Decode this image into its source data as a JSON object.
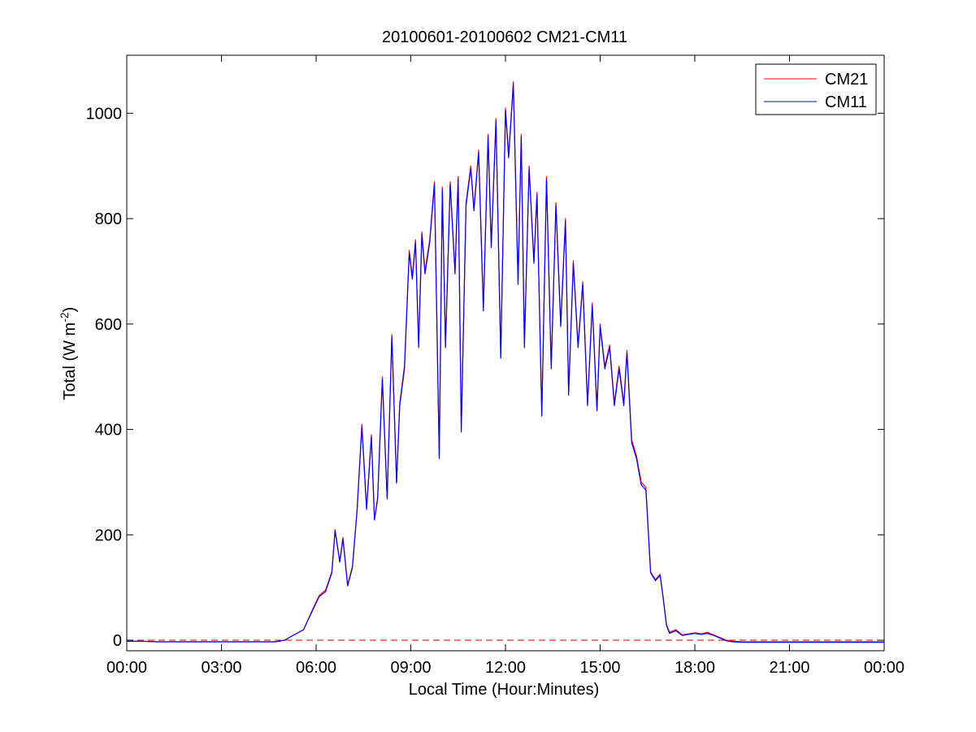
{
  "chart_data": {
    "type": "line",
    "title": "20100601-20100602 CM21-CM11",
    "xlabel": "Local Time (Hour:Minutes)",
    "ylabel_main": "Total (W m",
    "ylabel_sup": "-2",
    "ylabel_close": ")",
    "xlim_hours": [
      0,
      24
    ],
    "ylim": [
      -20,
      1110
    ],
    "x_ticks": [
      {
        "hour": 0,
        "label": "00:00"
      },
      {
        "hour": 3,
        "label": "03:00"
      },
      {
        "hour": 6,
        "label": "06:00"
      },
      {
        "hour": 9,
        "label": "09:00"
      },
      {
        "hour": 12,
        "label": "12:00"
      },
      {
        "hour": 15,
        "label": "15:00"
      },
      {
        "hour": 18,
        "label": "18:00"
      },
      {
        "hour": 21,
        "label": "21:00"
      },
      {
        "hour": 24,
        "label": "00:00"
      }
    ],
    "y_ticks": [
      {
        "value": 0,
        "label": "0"
      },
      {
        "value": 200,
        "label": "200"
      },
      {
        "value": 400,
        "label": "400"
      },
      {
        "value": 600,
        "label": "600"
      },
      {
        "value": 800,
        "label": "800"
      },
      {
        "value": 1000,
        "label": "1000"
      }
    ],
    "grid": false,
    "legend_position": "top-right",
    "zero_reference_line": {
      "value": 0,
      "color": "#cc0000",
      "style": "dashed"
    },
    "series": [
      {
        "name": "CM21",
        "color": "#ff0000",
        "x_hours": [
          0,
          0.5,
          1,
          2,
          3,
          4,
          4.7,
          5.0,
          5.3,
          5.6,
          5.9,
          6.1,
          6.3,
          6.5,
          6.6,
          6.75,
          6.85,
          7.0,
          7.15,
          7.3,
          7.45,
          7.6,
          7.75,
          7.85,
          7.95,
          8.1,
          8.25,
          8.4,
          8.55,
          8.65,
          8.8,
          8.95,
          9.05,
          9.15,
          9.25,
          9.35,
          9.45,
          9.6,
          9.75,
          9.9,
          10.0,
          10.1,
          10.25,
          10.4,
          10.5,
          10.6,
          10.75,
          10.9,
          11.0,
          11.15,
          11.3,
          11.45,
          11.55,
          11.7,
          11.85,
          12.0,
          12.1,
          12.25,
          12.4,
          12.5,
          12.6,
          12.75,
          12.9,
          13.0,
          13.15,
          13.3,
          13.45,
          13.6,
          13.75,
          13.9,
          14.0,
          14.15,
          14.3,
          14.45,
          14.6,
          14.75,
          14.9,
          15.0,
          15.15,
          15.3,
          15.45,
          15.6,
          15.75,
          15.85,
          16.0,
          16.15,
          16.3,
          16.45,
          16.6,
          16.75,
          16.9,
          17.0,
          17.1,
          17.2,
          17.4,
          17.6,
          17.8,
          18.0,
          18.2,
          18.4,
          18.6,
          18.8,
          19.0,
          19.2,
          19.5,
          20,
          21,
          22,
          23,
          24
        ],
        "values": [
          -2,
          -2,
          -3,
          -3,
          -3,
          -3,
          -3,
          0,
          10,
          20,
          60,
          85,
          95,
          130,
          210,
          150,
          195,
          105,
          140,
          250,
          410,
          250,
          390,
          230,
          270,
          500,
          270,
          580,
          300,
          450,
          520,
          740,
          690,
          760,
          560,
          775,
          700,
          760,
          870,
          350,
          860,
          560,
          870,
          700,
          880,
          400,
          830,
          900,
          820,
          930,
          630,
          960,
          750,
          990,
          540,
          1010,
          920,
          1060,
          680,
          960,
          560,
          900,
          720,
          850,
          430,
          880,
          520,
          830,
          600,
          800,
          470,
          720,
          560,
          680,
          450,
          640,
          440,
          600,
          520,
          560,
          450,
          520,
          450,
          550,
          380,
          350,
          300,
          290,
          130,
          115,
          125,
          80,
          30,
          15,
          20,
          10,
          12,
          14,
          12,
          15,
          10,
          5,
          0,
          -2,
          -3,
          -3,
          -3,
          -3,
          -3,
          -3
        ]
      },
      {
        "name": "CM11",
        "color": "#0000ff",
        "x_hours": [
          0,
          0.5,
          1,
          2,
          3,
          4,
          4.7,
          5.0,
          5.3,
          5.6,
          5.9,
          6.1,
          6.3,
          6.5,
          6.6,
          6.75,
          6.85,
          7.0,
          7.15,
          7.3,
          7.45,
          7.6,
          7.75,
          7.85,
          7.95,
          8.1,
          8.25,
          8.4,
          8.55,
          8.65,
          8.8,
          8.95,
          9.05,
          9.15,
          9.25,
          9.35,
          9.45,
          9.6,
          9.75,
          9.9,
          10.0,
          10.1,
          10.25,
          10.4,
          10.5,
          10.6,
          10.75,
          10.9,
          11.0,
          11.15,
          11.3,
          11.45,
          11.55,
          11.7,
          11.85,
          12.0,
          12.1,
          12.25,
          12.4,
          12.5,
          12.6,
          12.75,
          12.9,
          13.0,
          13.15,
          13.3,
          13.45,
          13.6,
          13.75,
          13.9,
          14.0,
          14.15,
          14.3,
          14.45,
          14.6,
          14.75,
          14.9,
          15.0,
          15.15,
          15.3,
          15.45,
          15.6,
          15.75,
          15.85,
          16.0,
          16.15,
          16.3,
          16.45,
          16.6,
          16.75,
          16.9,
          17.0,
          17.1,
          17.2,
          17.4,
          17.6,
          17.8,
          18.0,
          18.2,
          18.4,
          18.6,
          18.8,
          19.0,
          19.2,
          19.5,
          20,
          21,
          22,
          23,
          24
        ],
        "values": [
          -2,
          -2,
          -3,
          -3,
          -3,
          -3,
          -3,
          0,
          10,
          20,
          58,
          83,
          92,
          128,
          208,
          148,
          192,
          103,
          138,
          248,
          405,
          248,
          385,
          228,
          268,
          495,
          268,
          575,
          298,
          445,
          515,
          735,
          685,
          755,
          555,
          770,
          695,
          755,
          865,
          345,
          855,
          555,
          865,
          695,
          875,
          395,
          825,
          895,
          815,
          925,
          625,
          955,
          745,
          985,
          535,
          1005,
          915,
          1055,
          675,
          955,
          555,
          895,
          715,
          845,
          425,
          875,
          515,
          825,
          595,
          795,
          465,
          715,
          555,
          675,
          445,
          635,
          435,
          595,
          515,
          555,
          445,
          515,
          445,
          545,
          375,
          345,
          295,
          285,
          128,
          113,
          123,
          78,
          28,
          13,
          18,
          9,
          11,
          13,
          11,
          13,
          9,
          4,
          -1,
          -3,
          -4,
          -4,
          -4,
          -4,
          -4,
          -4
        ]
      }
    ]
  }
}
